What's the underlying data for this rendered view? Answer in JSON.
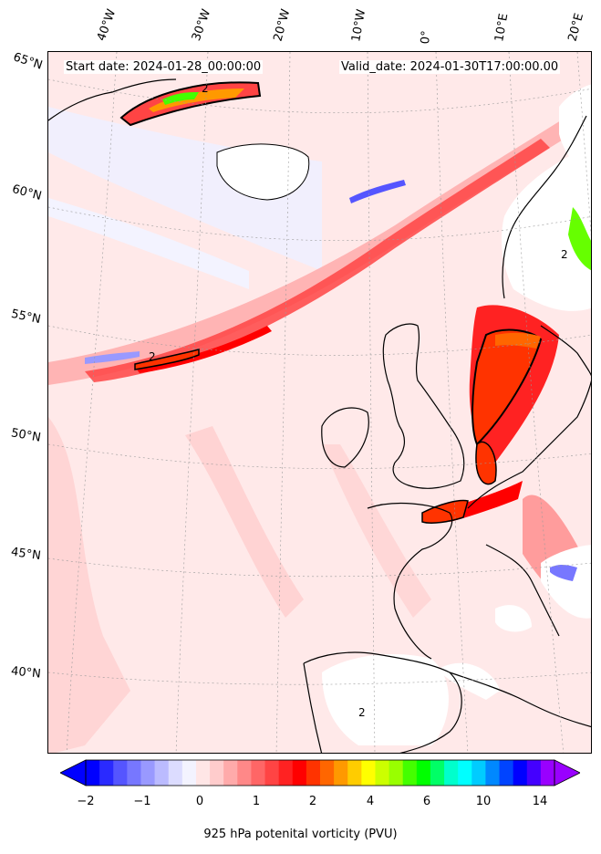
{
  "header": {
    "start_date": "Start date: 2024-01-28_00:00:00",
    "valid_date": "Valid_date: 2024-01-30T17:00:00.00"
  },
  "lon_labels": [
    "40°W",
    "30°W",
    "20°W",
    "10°W",
    "0°",
    "10°E",
    "20°E"
  ],
  "lat_labels": [
    "65°N",
    "60°N",
    "55°N",
    "50°N",
    "45°N",
    "40°N"
  ],
  "colorbar": {
    "title": "925 hPa potenital vorticity (PVU)",
    "ticks": [
      "−2",
      "−1",
      "0",
      "1",
      "2",
      "4",
      "6",
      "10",
      "14"
    ],
    "colors": [
      "#0000ff",
      "#2a2aff",
      "#5555ff",
      "#7777ff",
      "#9999ff",
      "#bbbbff",
      "#dcdcff",
      "#f3f3ff",
      "#ffe6e6",
      "#ffcccc",
      "#ffaaaa",
      "#ff8888",
      "#ff6666",
      "#ff4444",
      "#ff2222",
      "#ff0000",
      "#ff3300",
      "#ff6600",
      "#ff9900",
      "#ffcc00",
      "#ffff00",
      "#ccff00",
      "#99ff00",
      "#44ff00",
      "#00ff00",
      "#00ff66",
      "#00ffcc",
      "#00ffff",
      "#00ccff",
      "#0088ff",
      "#0044ff",
      "#0000ff",
      "#4400ff",
      "#9900ff"
    ]
  },
  "contour_labels": [
    "2",
    "2",
    "2",
    "2"
  ]
}
